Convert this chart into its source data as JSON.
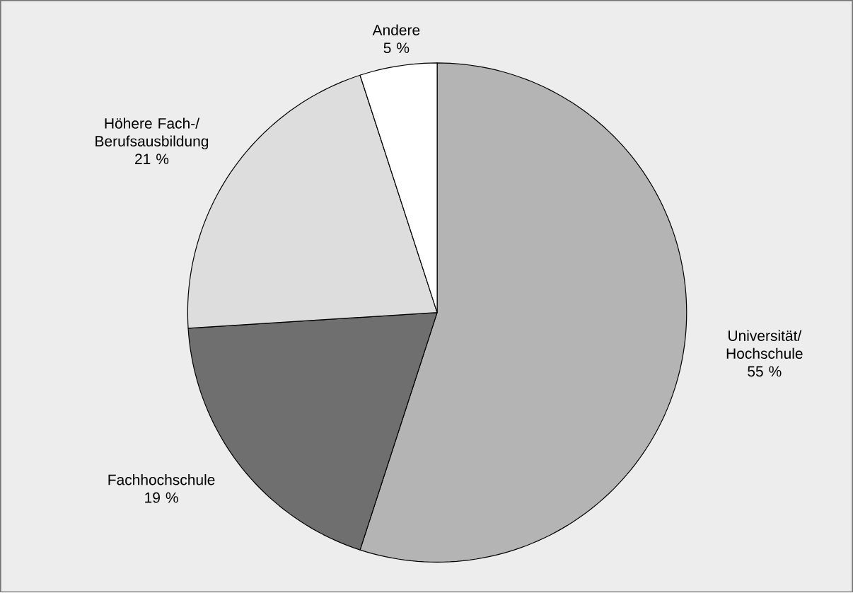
{
  "chart_data": {
    "type": "pie",
    "categories": [
      "Universität/ Hochschule",
      "Fachhochschule",
      "Höhere Fach-/ Berufsausbildung",
      "Andere"
    ],
    "values": [
      55,
      19,
      21,
      5
    ],
    "value_labels": [
      "55 %",
      "19 %",
      "21 %",
      "5 %"
    ],
    "colors": [
      "#b4b4b4",
      "#6f6f6f",
      "#dddddd",
      "#ffffff"
    ]
  }
}
